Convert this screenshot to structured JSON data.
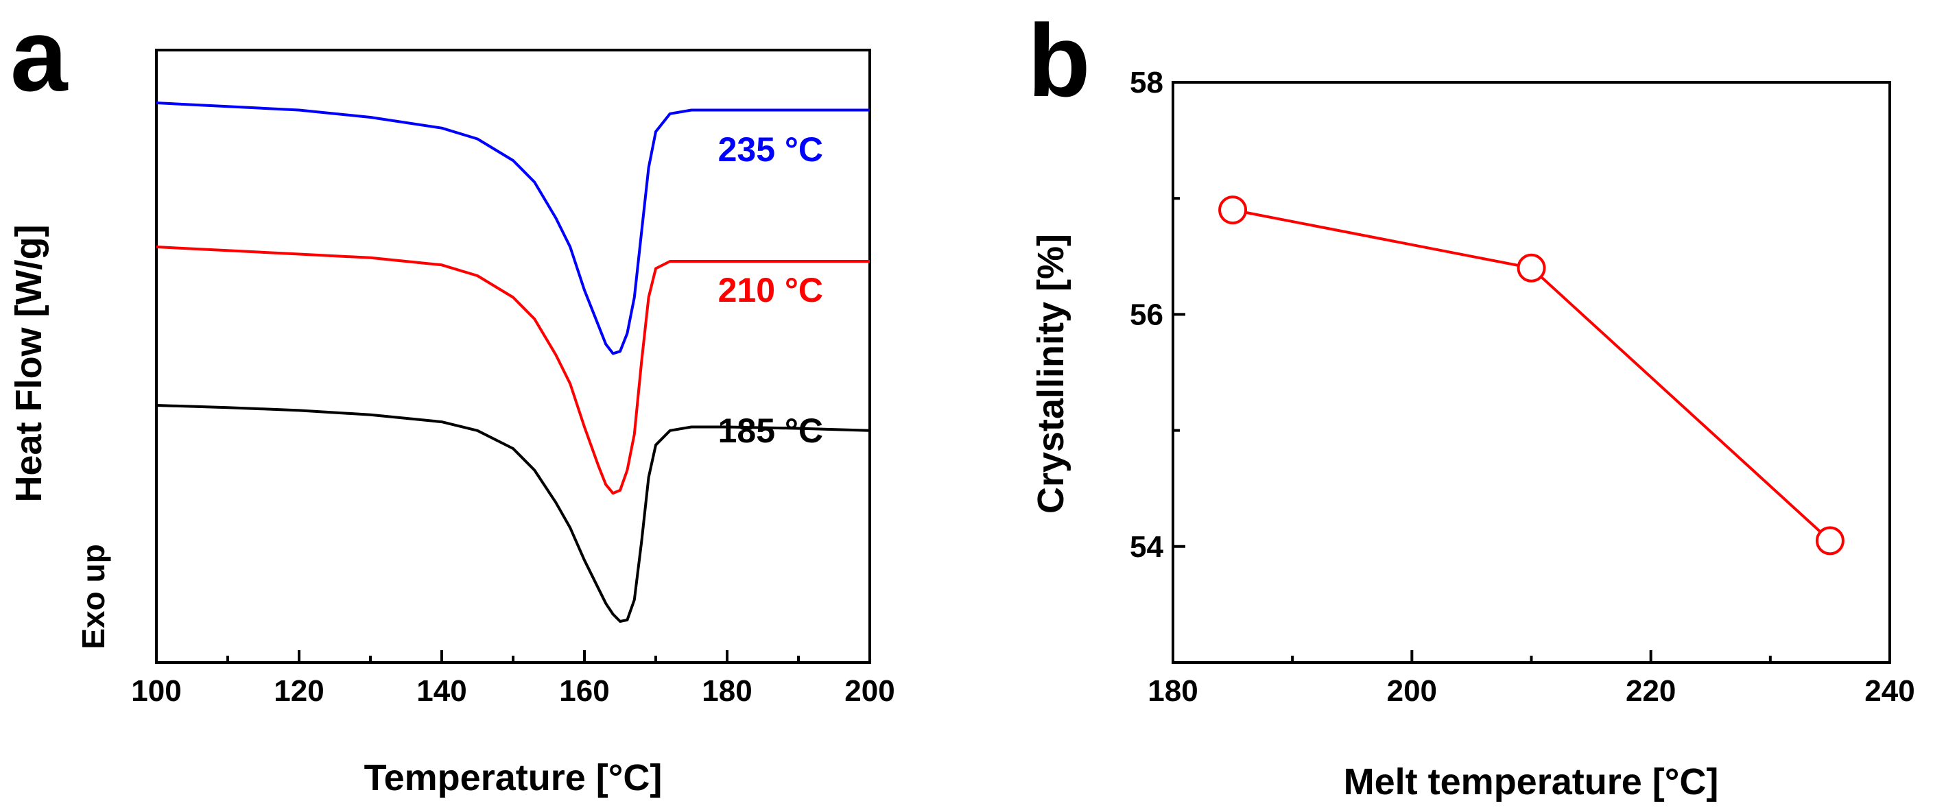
{
  "chart_data": [
    {
      "panel": "a",
      "type": "line",
      "title": "",
      "xlabel": "Temperature [°C]",
      "ylabel": "Heat Flow [W/g]",
      "ylabel_note": "Exo up",
      "xlim": [
        100,
        200
      ],
      "xticks": [
        100,
        120,
        140,
        160,
        180,
        200
      ],
      "y_units": "arbitrary (curves offset)",
      "grid": false,
      "series": [
        {
          "name": "235 °C",
          "label": "235 °C",
          "color": "#0000ff",
          "x": [
            100,
            110,
            120,
            130,
            140,
            145,
            150,
            153,
            156,
            158,
            160,
            162,
            163,
            164,
            165,
            166,
            167,
            168,
            169,
            170,
            172,
            175,
            180,
            190,
            200
          ],
          "y": [
            0.72,
            0.715,
            0.71,
            0.7,
            0.685,
            0.67,
            0.64,
            0.61,
            0.56,
            0.52,
            0.46,
            0.41,
            0.385,
            0.372,
            0.375,
            0.4,
            0.45,
            0.54,
            0.63,
            0.68,
            0.705,
            0.71,
            0.71,
            0.71,
            0.71
          ]
        },
        {
          "name": "210 °C",
          "label": "210 °C",
          "color": "#ff0000",
          "x": [
            100,
            110,
            120,
            130,
            140,
            145,
            150,
            153,
            156,
            158,
            160,
            162,
            163,
            164,
            165,
            166,
            167,
            168,
            169,
            170,
            172,
            175,
            180,
            190,
            200
          ],
          "y": [
            0.52,
            0.515,
            0.51,
            0.505,
            0.495,
            0.48,
            0.45,
            0.42,
            0.37,
            0.33,
            0.27,
            0.215,
            0.19,
            0.178,
            0.182,
            0.21,
            0.26,
            0.36,
            0.45,
            0.49,
            0.5,
            0.5,
            0.5,
            0.5,
            0.5
          ]
        },
        {
          "name": "185 °C",
          "label": "185 °C",
          "color": "#000000",
          "x": [
            100,
            110,
            120,
            130,
            140,
            145,
            150,
            153,
            156,
            158,
            160,
            162,
            163,
            164,
            165,
            166,
            167,
            168,
            169,
            170,
            172,
            175,
            180,
            190,
            200
          ],
          "y": [
            0.3,
            0.297,
            0.293,
            0.287,
            0.277,
            0.265,
            0.24,
            0.21,
            0.165,
            0.13,
            0.085,
            0.045,
            0.025,
            0.01,
            0.0,
            0.002,
            0.03,
            0.11,
            0.2,
            0.245,
            0.265,
            0.27,
            0.27,
            0.268,
            0.265
          ]
        }
      ]
    },
    {
      "panel": "b",
      "type": "line",
      "title": "",
      "xlabel": "Melt temperature [°C]",
      "ylabel": "Crystallinity [%]",
      "xlim": [
        180,
        240
      ],
      "ylim": [
        53,
        58
      ],
      "xticks": [
        180,
        200,
        220,
        240
      ],
      "yticks": [
        54,
        56,
        58
      ],
      "grid": false,
      "series": [
        {
          "name": "Crystallinity",
          "color": "#ff0000",
          "marker": "open-circle",
          "x": [
            185,
            210,
            235
          ],
          "y": [
            56.9,
            56.4,
            54.05
          ]
        }
      ]
    }
  ],
  "panels": {
    "a": "a",
    "b": "b"
  }
}
